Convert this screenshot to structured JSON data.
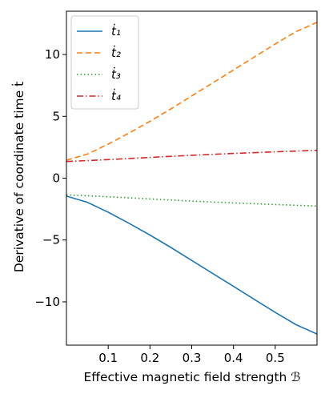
{
  "chart_data": {
    "type": "line",
    "title": "",
    "xlabel": "Effective magnetic field strength ℬ",
    "ylabel": "Derivative of coordinate time ṫ",
    "xlim": [
      0.0,
      0.6
    ],
    "ylim": [
      -13.5,
      13.5
    ],
    "xticks": [
      0.1,
      0.2,
      0.3,
      0.4,
      0.5
    ],
    "xtick_labels": [
      "0.1",
      "0.2",
      "0.3",
      "0.4",
      "0.5"
    ],
    "yticks": [
      -10,
      -5,
      0,
      5,
      10
    ],
    "ytick_labels": [
      "−10",
      "−5",
      "0",
      "5",
      "10"
    ],
    "grid": false,
    "legend_position": "top-left",
    "series": [
      {
        "name": "ṫ₁",
        "color": "#1f77b4",
        "style": "solid",
        "x": [
          0.0,
          0.05,
          0.1,
          0.15,
          0.2,
          0.25,
          0.3,
          0.35,
          0.4,
          0.45,
          0.5,
          0.55,
          0.6
        ],
        "y": [
          -1.45,
          -1.95,
          -2.75,
          -3.65,
          -4.6,
          -5.6,
          -6.65,
          -7.7,
          -8.75,
          -9.8,
          -10.85,
          -11.85,
          -12.6
        ]
      },
      {
        "name": "ṫ₂",
        "color": "#ff7f0e",
        "style": "dashed",
        "x": [
          0.0,
          0.05,
          0.1,
          0.15,
          0.2,
          0.25,
          0.3,
          0.35,
          0.4,
          0.45,
          0.5,
          0.55,
          0.6
        ],
        "y": [
          1.45,
          1.95,
          2.75,
          3.65,
          4.6,
          5.6,
          6.65,
          7.7,
          8.75,
          9.8,
          10.85,
          11.85,
          12.6
        ]
      },
      {
        "name": "ṫ₃",
        "color": "#2ca02c",
        "style": "dotted",
        "x": [
          0.0,
          0.1,
          0.2,
          0.3,
          0.4,
          0.5,
          0.6
        ],
        "y": [
          -1.35,
          -1.5,
          -1.68,
          -1.85,
          -2.0,
          -2.13,
          -2.25
        ]
      },
      {
        "name": "ṫ₄",
        "color": "#d62728",
        "style": "dashdot",
        "x": [
          0.0,
          0.1,
          0.2,
          0.3,
          0.4,
          0.5,
          0.6
        ],
        "y": [
          1.35,
          1.5,
          1.68,
          1.85,
          2.0,
          2.13,
          2.25
        ]
      }
    ]
  }
}
